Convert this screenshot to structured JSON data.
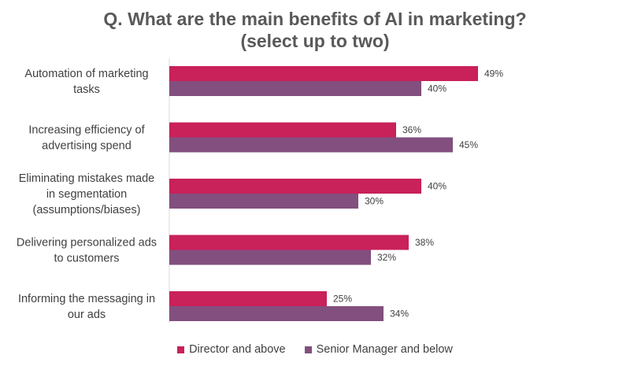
{
  "chart_data": {
    "type": "bar",
    "orientation": "horizontal",
    "title_line1": "Q. What are the main benefits of AI in marketing?",
    "title_line2": "(select up to two)",
    "categories": [
      [
        "Automation of marketing",
        "tasks"
      ],
      [
        "Increasing efficiency of",
        "advertising spend"
      ],
      [
        "Eliminating mistakes made",
        "in segmentation",
        "(assumptions/biases)"
      ],
      [
        "Delivering personalized ads",
        "to customers"
      ],
      [
        "Informing the messaging in",
        "our ads"
      ]
    ],
    "series": [
      {
        "name": "Director and above",
        "color": "#C9215A",
        "values": [
          49,
          36,
          40,
          38,
          25
        ],
        "labels": [
          "49%",
          "36%",
          "40%",
          "38%",
          "25%"
        ]
      },
      {
        "name": "Senior Manager and below",
        "color": "#824F7E",
        "values": [
          40,
          45,
          30,
          32,
          34
        ],
        "labels": [
          "40%",
          "45%",
          "30%",
          "32%",
          "34%"
        ]
      }
    ],
    "xlim": [
      0,
      100
    ],
    "grid": false,
    "legend_position": "bottom"
  }
}
